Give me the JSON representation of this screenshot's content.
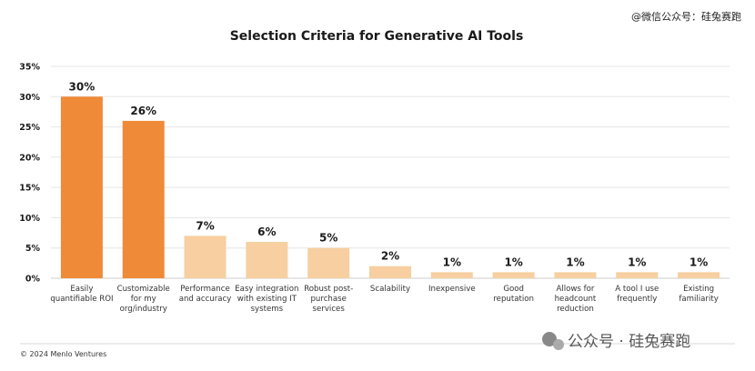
{
  "watermark_top": "@微信公众号：硅兔赛跑",
  "watermark_bottom": "公众号 · 硅兔赛跑",
  "footer": "© 2024 Menlo Ventures",
  "colors": {
    "highlight": "#EF8A38",
    "muted": "#F7CFA0",
    "gridline": "#e6e6e6",
    "divider": "#d9d9d9"
  },
  "chart_data": {
    "type": "bar",
    "title": "Selection Criteria for Generative AI Tools",
    "xlabel": "",
    "ylabel": "",
    "ylim": [
      0,
      35
    ],
    "yticks": [
      "0%",
      "5%",
      "10%",
      "15%",
      "20%",
      "25%",
      "30%",
      "35%"
    ],
    "grid": true,
    "categories": [
      [
        "Easily",
        "quantifiable ROI"
      ],
      [
        "Customizable",
        "for my",
        "org/industry"
      ],
      [
        "Performance",
        "and accuracy"
      ],
      [
        "Easy integration",
        "with existing IT",
        "systems"
      ],
      [
        "Robust post-",
        "purchase",
        "services"
      ],
      [
        "Scalability"
      ],
      [
        "Inexpensive"
      ],
      [
        "Good",
        "reputation"
      ],
      [
        "Allows for",
        "headcount",
        "reduction"
      ],
      [
        "A tool I use",
        "frequently"
      ],
      [
        "Existing",
        "familiarity"
      ]
    ],
    "values": [
      30,
      26,
      7,
      6,
      5,
      2,
      1,
      1,
      1,
      1,
      1
    ],
    "data_labels": [
      "30%",
      "26%",
      "7%",
      "6%",
      "5%",
      "2%",
      "1%",
      "1%",
      "1%",
      "1%",
      "1%"
    ],
    "highlighted": [
      true,
      true,
      false,
      false,
      false,
      false,
      false,
      false,
      false,
      false,
      false
    ]
  }
}
